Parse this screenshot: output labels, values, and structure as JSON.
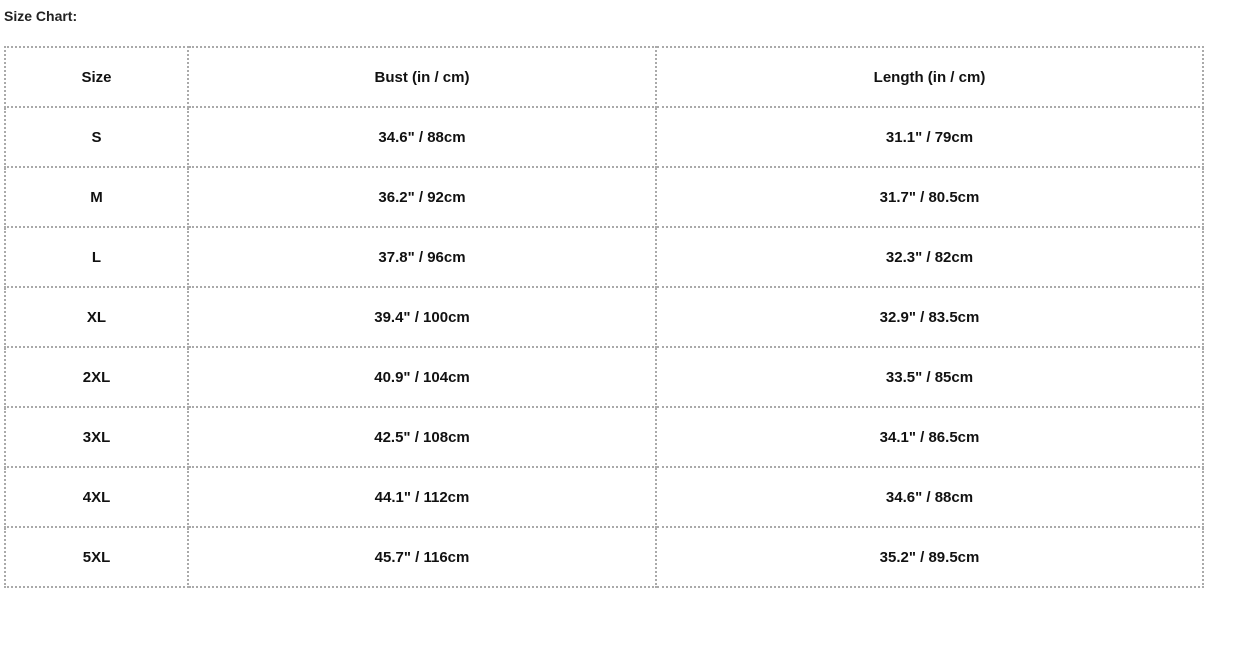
{
  "title": "Size Chart:",
  "table": {
    "headers": [
      "Size",
      "Bust (in / cm)",
      "Length (in / cm)"
    ],
    "rows": [
      [
        "S",
        "34.6\" / 88cm",
        "31.1\" / 79cm"
      ],
      [
        "M",
        "36.2\" / 92cm",
        "31.7\" / 80.5cm"
      ],
      [
        "L",
        "37.8\" / 96cm",
        "32.3\" / 82cm"
      ],
      [
        "XL",
        "39.4\" / 100cm",
        "32.9\" / 83.5cm"
      ],
      [
        "2XL",
        "40.9\" / 104cm",
        "33.5\" / 85cm"
      ],
      [
        "3XL",
        "42.5\" / 108cm",
        "34.1\" / 86.5cm"
      ],
      [
        "4XL",
        "44.1\" / 112cm",
        "34.6\" / 88cm"
      ],
      [
        "5XL",
        "45.7\" / 116cm",
        "35.2\" / 89.5cm"
      ]
    ]
  }
}
